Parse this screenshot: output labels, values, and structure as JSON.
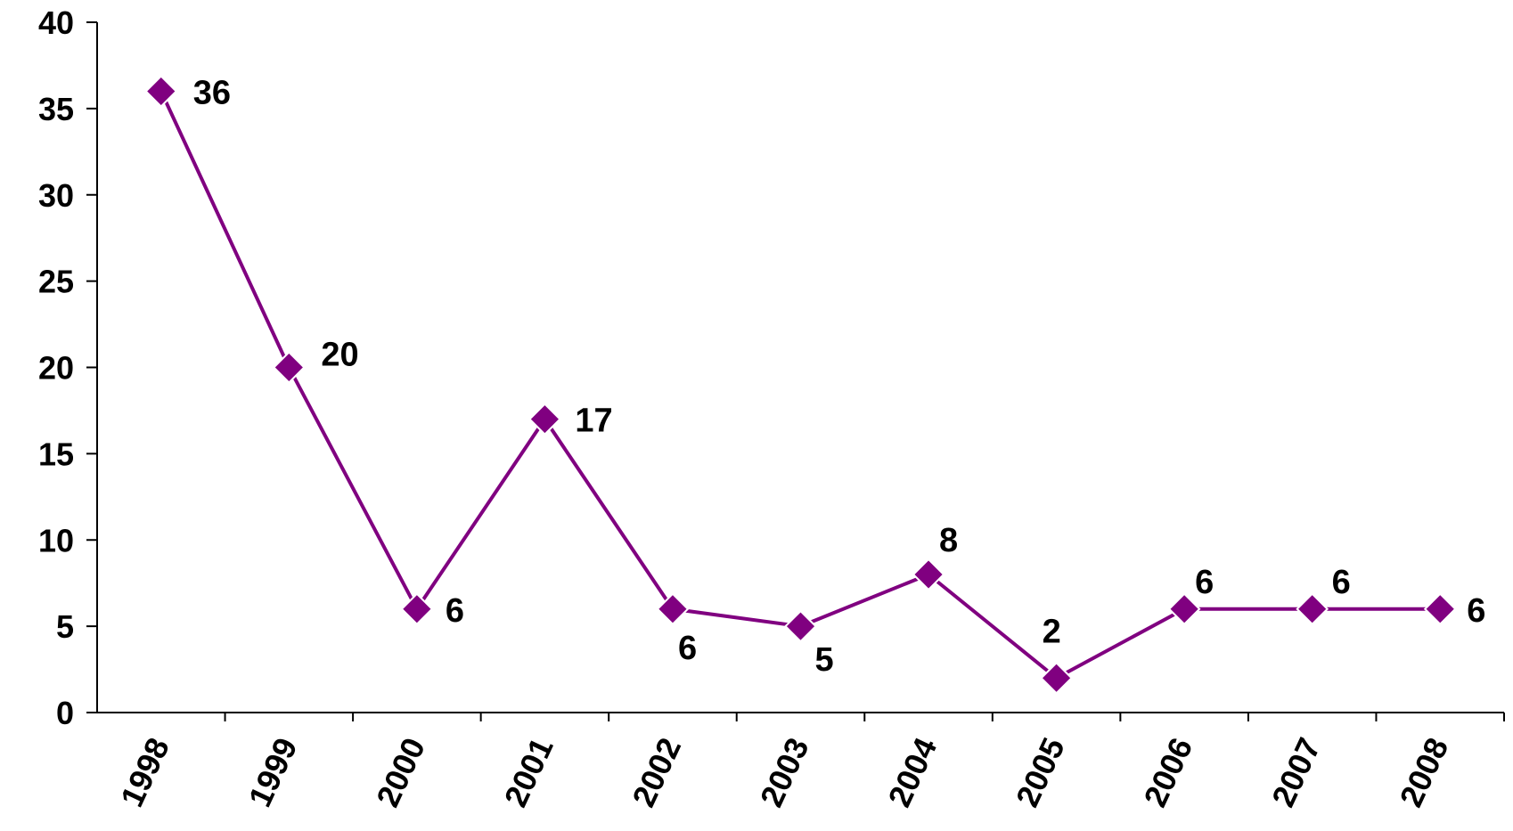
{
  "chart_data": {
    "type": "line",
    "title": "",
    "xlabel": "",
    "ylabel": "",
    "categories": [
      "1998",
      "1999",
      "2000",
      "2001",
      "2002",
      "2003",
      "2004",
      "2005",
      "2006",
      "2007",
      "2008"
    ],
    "series": [
      {
        "values": [
          36,
          20,
          6,
          17,
          6,
          5,
          8,
          2,
          6,
          6,
          6
        ],
        "color": "#800080",
        "marker": "diamond"
      }
    ],
    "ylim": [
      0,
      40
    ],
    "yticks": [
      0,
      5,
      10,
      15,
      20,
      25,
      30,
      35,
      40
    ],
    "ytick_labels": [
      "0",
      "5",
      "10",
      "15",
      "20",
      "25",
      "30",
      "35",
      "40"
    ],
    "data_labels": [
      "36",
      "20",
      "6",
      "17",
      "6",
      "5",
      "8",
      "2",
      "6",
      "6",
      "6"
    ],
    "grid": false,
    "legend": "none"
  }
}
